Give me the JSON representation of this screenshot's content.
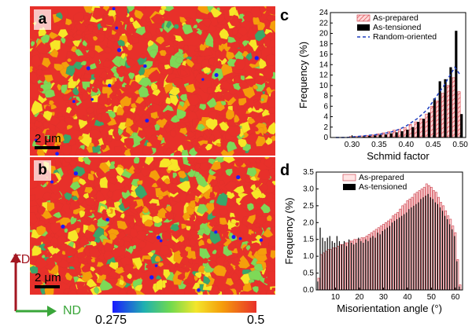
{
  "panels": {
    "a": {
      "letter": "a",
      "scale_label": "2 μm"
    },
    "b": {
      "letter": "b",
      "scale_label": "2 μm"
    }
  },
  "colorbar": {
    "min_label": "0.275",
    "max_label": "0.5",
    "colors": [
      "#1a1aff",
      "#22c55e",
      "#7ed957",
      "#f7e627",
      "#f59e0b",
      "#e8302a"
    ]
  },
  "axes_labels": {
    "td": "TD",
    "nd": "ND",
    "td_color": "#a31621",
    "nd_color": "#3aa63a"
  },
  "chart_data": [
    {
      "panel_label": "c",
      "type": "bar",
      "xlabel": "Schmid factor",
      "ylabel": "Frequency (%)",
      "xlim": [
        0.26,
        0.51
      ],
      "ylim": [
        0,
        24
      ],
      "xticks": [
        "0.30",
        "0.35",
        "0.40",
        "0.45",
        "0.50"
      ],
      "yticks": [
        "0",
        "2",
        "4",
        "6",
        "8",
        "10",
        "12",
        "14",
        "16",
        "18",
        "20",
        "22",
        "24"
      ],
      "legend": [
        "As-prepared",
        "As-tensioned",
        "Random-oriented"
      ],
      "legend_position": "top-right",
      "x": [
        0.27,
        0.28,
        0.29,
        0.3,
        0.31,
        0.32,
        0.33,
        0.34,
        0.35,
        0.36,
        0.37,
        0.38,
        0.39,
        0.4,
        0.41,
        0.42,
        0.43,
        0.44,
        0.45,
        0.46,
        0.47,
        0.48,
        0.49,
        0.5
      ],
      "series": [
        {
          "name": "As-prepared",
          "values": [
            0,
            0,
            0,
            0.2,
            0.2,
            0.3,
            0.4,
            0.5,
            0.7,
            0.9,
            1.1,
            1.4,
            1.6,
            1.9,
            2.5,
            3.0,
            3.6,
            4.5,
            6.0,
            7.0,
            8.5,
            10.0,
            11.5,
            8.8
          ]
        },
        {
          "name": "As-tensioned",
          "values": [
            0,
            0,
            0,
            0.1,
            0.1,
            0.2,
            0.3,
            0.4,
            0.5,
            0.6,
            0.8,
            1.0,
            1.2,
            1.5,
            2.0,
            3.0,
            3.6,
            4.8,
            7.5,
            10.8,
            11.2,
            13.5,
            20.5,
            4.5
          ]
        },
        {
          "name": "Random-oriented",
          "values": [
            0,
            0,
            0,
            0.1,
            0.2,
            0.3,
            0.4,
            0.5,
            0.6,
            0.8,
            1.0,
            1.3,
            1.7,
            2.2,
            2.9,
            3.6,
            4.5,
            5.5,
            7.0,
            8.5,
            10.0,
            11.8,
            13.5,
            12.0
          ]
        }
      ]
    },
    {
      "panel_label": "d",
      "type": "bar",
      "xlabel": "Misorientation angle (°)",
      "ylabel": "Frequency (%)",
      "xlim": [
        2,
        63
      ],
      "ylim": [
        0,
        3.5
      ],
      "xticks": [
        "10",
        "20",
        "30",
        "40",
        "50",
        "60"
      ],
      "yticks": [
        "0.0",
        "0.5",
        "1.0",
        "1.5",
        "2.0",
        "2.5",
        "3.0",
        "3.5"
      ],
      "legend": [
        "As-prepared",
        "As-tensioned"
      ],
      "legend_position": "top-left",
      "x": [
        3,
        4,
        5,
        6,
        7,
        8,
        9,
        10,
        11,
        12,
        13,
        14,
        15,
        16,
        17,
        18,
        19,
        20,
        21,
        22,
        23,
        24,
        25,
        26,
        27,
        28,
        29,
        30,
        31,
        32,
        33,
        34,
        35,
        36,
        37,
        38,
        39,
        40,
        41,
        42,
        43,
        44,
        45,
        46,
        47,
        48,
        49,
        50,
        51,
        52,
        53,
        54,
        55,
        56,
        57,
        58,
        59,
        60,
        61,
        62
      ],
      "series": [
        {
          "name": "As-prepared",
          "values": [
            0.35,
            1.05,
            1.1,
            1.15,
            1.2,
            1.2,
            1.25,
            1.25,
            1.3,
            1.35,
            1.35,
            1.4,
            1.4,
            1.45,
            1.45,
            1.5,
            1.5,
            1.5,
            1.55,
            1.55,
            1.6,
            1.65,
            1.7,
            1.75,
            1.8,
            1.85,
            1.9,
            1.95,
            2.0,
            2.05,
            2.1,
            2.2,
            2.25,
            2.3,
            2.4,
            2.5,
            2.55,
            2.65,
            2.7,
            2.75,
            2.85,
            2.9,
            2.95,
            3.0,
            3.05,
            3.15,
            3.1,
            3.05,
            2.95,
            2.9,
            2.75,
            2.6,
            2.5,
            2.35,
            2.2,
            2.1,
            1.9,
            1.7,
            0.9,
            0.15
          ]
        },
        {
          "name": "As-tensioned",
          "values": [
            0.25,
            1.85,
            1.55,
            1.45,
            1.55,
            1.6,
            1.45,
            1.4,
            1.6,
            1.45,
            1.35,
            1.45,
            1.3,
            1.5,
            1.4,
            1.35,
            1.4,
            1.55,
            1.45,
            1.4,
            1.5,
            1.45,
            1.55,
            1.6,
            1.55,
            1.7,
            1.65,
            1.75,
            1.8,
            1.85,
            1.9,
            2.0,
            2.05,
            2.1,
            2.15,
            2.2,
            2.25,
            2.3,
            2.4,
            2.45,
            2.5,
            2.55,
            2.6,
            2.7,
            2.75,
            2.8,
            2.85,
            2.75,
            2.7,
            2.6,
            2.55,
            2.45,
            2.35,
            2.2,
            2.1,
            1.95,
            1.8,
            1.6,
            0.85,
            0.1
          ]
        }
      ]
    }
  ]
}
